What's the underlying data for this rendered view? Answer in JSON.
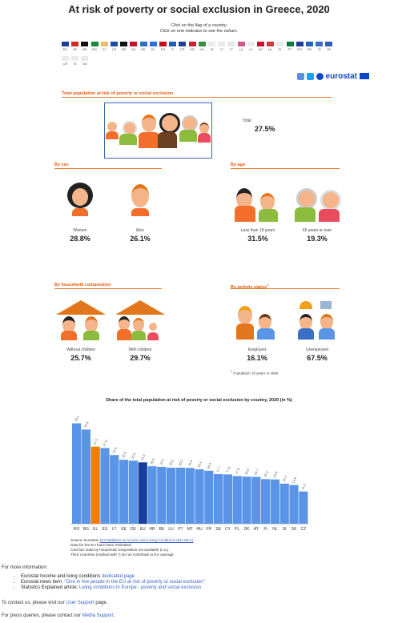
{
  "page": {
    "title": "At risk of poverty or social exclusion in Greece, 2020",
    "instruction_1": "Click on the flag of a country.",
    "instruction_2": "Click on one indicator to see the values."
  },
  "countries": [
    {
      "code": "EU",
      "color": "#1b3e96"
    },
    {
      "code": "AT",
      "color": "#d52b1e"
    },
    {
      "code": "BE",
      "color": "#111111"
    },
    {
      "code": "BG",
      "color": "#1c8a3a"
    },
    {
      "code": "CY",
      "color": "#e8c06a"
    },
    {
      "code": "CZ",
      "color": "#1d4fa3"
    },
    {
      "code": "DE",
      "color": "#111111"
    },
    {
      "code": "DK",
      "color": "#c8102e"
    },
    {
      "code": "EE",
      "color": "#2f6cc2"
    },
    {
      "code": "EL",
      "color": "#2a6fdb"
    },
    {
      "code": "ES",
      "color": "#c60b1e"
    },
    {
      "code": "FI",
      "color": "#1e5db3"
    },
    {
      "code": "FR",
      "color": "#1f3e9c"
    },
    {
      "code": "HR",
      "color": "#d31f2b"
    },
    {
      "code": "HU",
      "color": "#3d8b45"
    },
    {
      "code": "IE",
      "color": "#eaeaea"
    },
    {
      "code": "IT",
      "color": "#e9e9e9"
    },
    {
      "code": "LT",
      "color": "#e7e7e7"
    },
    {
      "code": "LU",
      "color": "#d05a8a"
    },
    {
      "code": "LV",
      "color": "#ececec"
    },
    {
      "code": "MT",
      "color": "#c8102e"
    },
    {
      "code": "NL",
      "color": "#cd3b3b"
    },
    {
      "code": "PL",
      "color": "#e9e9e9"
    },
    {
      "code": "PT",
      "color": "#0b7a3a"
    },
    {
      "code": "RO",
      "color": "#1a3e9d"
    },
    {
      "code": "SE",
      "color": "#1f64b6"
    },
    {
      "code": "SI",
      "color": "#3a6fc7"
    },
    {
      "code": "SK",
      "color": "#2f5fb7"
    },
    {
      "code": "CH",
      "color": "#eaeaea"
    },
    {
      "code": "IS",
      "color": "#eaeaea"
    },
    {
      "code": "NO",
      "color": "#eaeaea"
    }
  ],
  "brand": {
    "name": "eurostat"
  },
  "total": {
    "header": "Total population at risk of poverty or social exclusion",
    "label": "Total",
    "value": "27.5%"
  },
  "by_sex": {
    "header": "By sex",
    "women": {
      "label": "Women",
      "value": "28.8%"
    },
    "men": {
      "label": "Men",
      "value": "26.1%"
    }
  },
  "by_age": {
    "header": "By age",
    "young": {
      "label": "Less than 18 years",
      "value": "31.5%"
    },
    "old": {
      "label": "65 years or over",
      "value": "19.3%"
    }
  },
  "by_household": {
    "header": "By household composition",
    "without": {
      "label": "Without children",
      "value": "25.7%"
    },
    "with": {
      "label": "With children",
      "value": "29.7%"
    }
  },
  "by_activity": {
    "header": "By activity status",
    "header_sup": "1",
    "employed": {
      "label": "Employed",
      "value": "16.1%"
    },
    "unemployed": {
      "label": "Unemployed",
      "value": "67.5%"
    },
    "footnote": "Population 18 years or older"
  },
  "chart_data": {
    "type": "bar",
    "title": "Share of the total population at risk of poverty or social exclusion by country, 2020 (in %)",
    "categories": [
      "RO",
      "BG",
      "EL",
      "ES",
      "LT",
      "EE",
      "DE",
      "EU",
      "HR",
      "BE",
      "LU",
      "PT",
      "MT",
      "HU",
      "FR",
      "SE",
      "CY",
      "PL",
      "DK",
      "AT",
      "FI",
      "NL",
      "SI",
      "SK",
      "CZ"
    ],
    "values": [
      35.8,
      33.6,
      27.5,
      27.0,
      24.5,
      22.8,
      22.5,
      21.9,
      20.5,
      20.3,
      20.0,
      20.0,
      19.9,
      19.4,
      18.9,
      17.7,
      17.6,
      17.0,
      16.8,
      16.7,
      15.9,
      15.8,
      14.3,
      13.8,
      11.5
    ],
    "highlight": {
      "EL": "#ef7d00",
      "EU": "#1a3e9d"
    },
    "bar_color": "#5a94e6",
    "ylim": [
      0,
      40
    ]
  },
  "sources": {
    "source_prefix": "Source: Eurostat,",
    "source_link": "EU-Statistics on Income and Living Conditions (EU-SILC)",
    "note_1": "Data for the EU have been estimated.",
    "note_2": "Czechia: Data by household composition not available (n.a.).",
    "note_3": "Third countries (marked with *) do not contribute to EU average."
  },
  "more_info": {
    "heading": "For more information:",
    "items": [
      {
        "text": "Eurostat Income and living conditions ",
        "link": "dedicated page"
      },
      {
        "text": "Eurostat news item: ",
        "link": "\"One in five people in the EU at risk of poverty or social exclusion\""
      },
      {
        "text": "Statistics Explained article: ",
        "link": "Living conditions in Europe - poverty and social exclusion"
      }
    ],
    "contact_prefix": "To contact us, please visit our ",
    "contact_link": "User Support",
    "contact_suffix": " page.",
    "press_prefix": "For press queries, please contact our ",
    "press_link": "Media Support",
    "press_suffix": "."
  }
}
